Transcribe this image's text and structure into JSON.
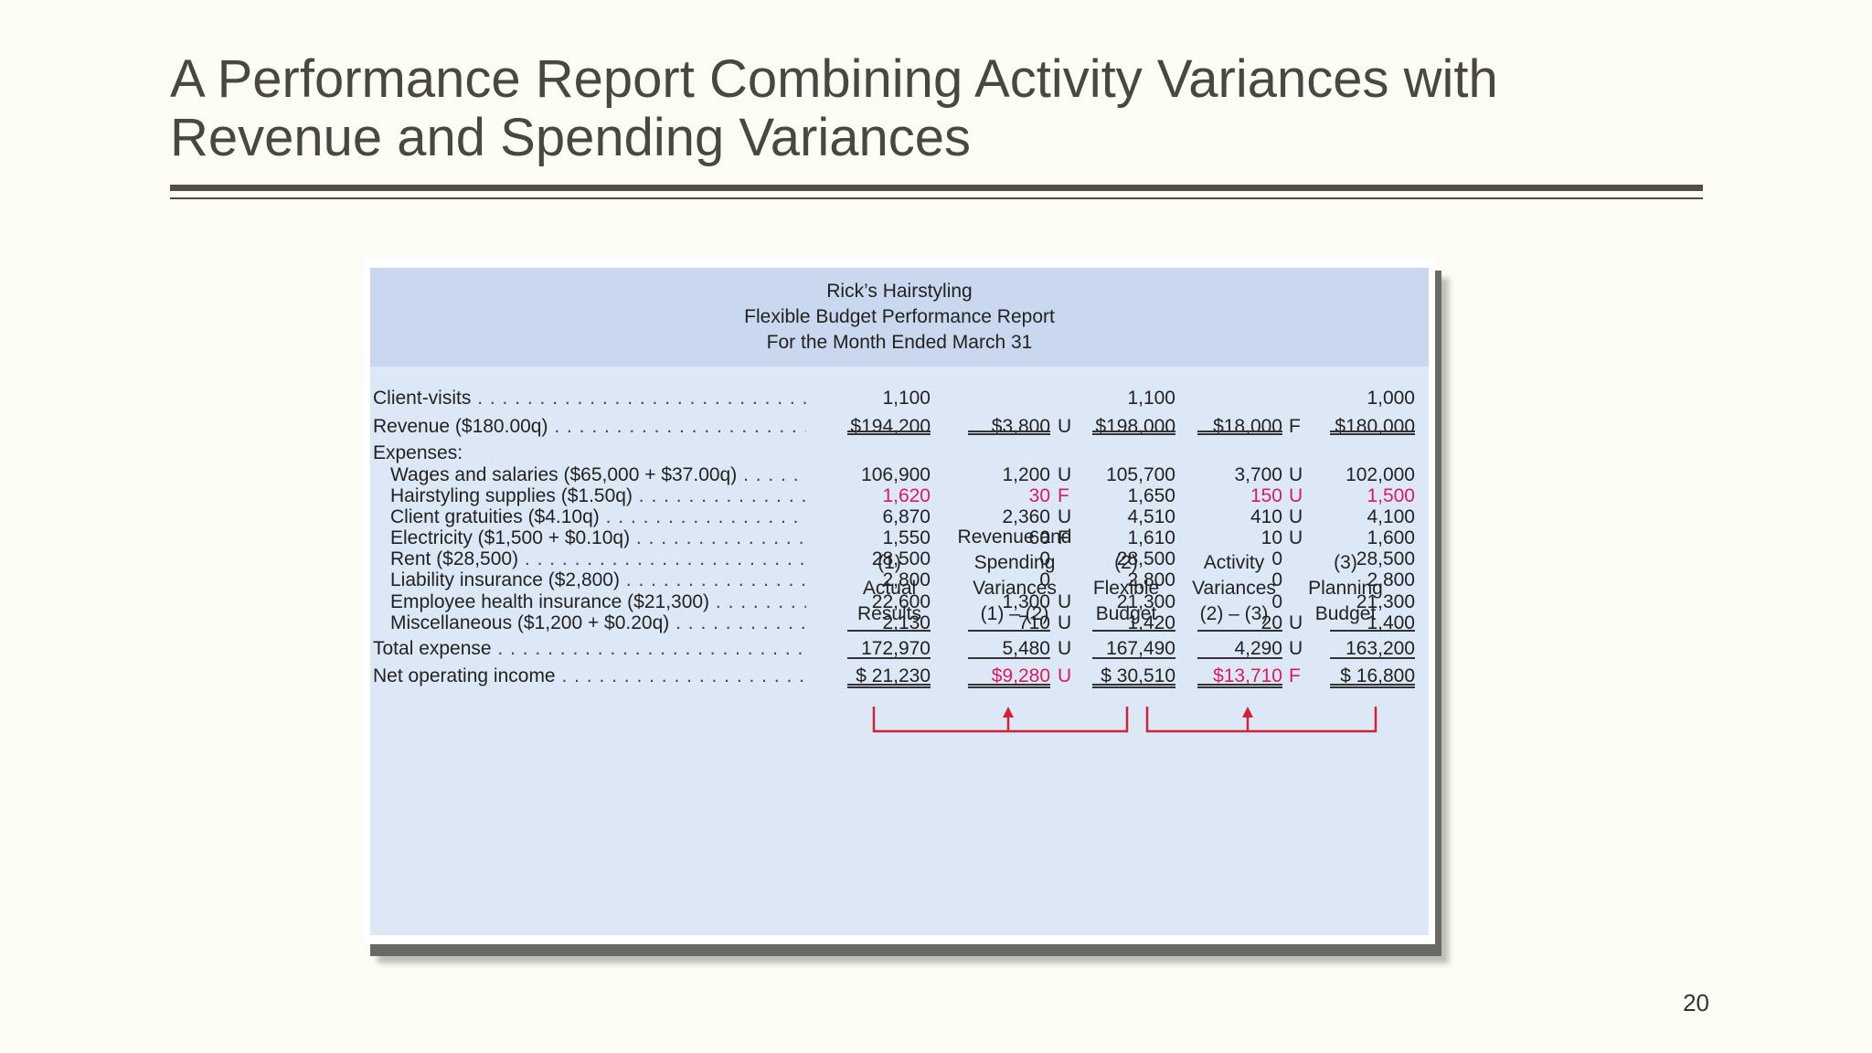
{
  "slide": {
    "title_line1": "A Performance Report Combining Activity Variances with",
    "title_line2": "Revenue and Spending Variances",
    "page_number": "20"
  },
  "report": {
    "company": "Rick’s Hairstyling",
    "report_name": "Flexible Budget Performance Report",
    "period": "For the Month Ended March 31",
    "columns": [
      {
        "lines": [
          "(1)",
          "Actual",
          "Results"
        ]
      },
      {
        "lines": [
          "Revenue and",
          "Spending",
          "Variances",
          "(1) – (2)"
        ]
      },
      {
        "lines": [
          "(2)",
          "Flexible",
          "Budget"
        ]
      },
      {
        "lines": [
          "Activity",
          "Variances",
          "(2) – (3)"
        ]
      },
      {
        "lines": [
          "(3)",
          "Planning",
          "Budget"
        ]
      }
    ],
    "rows": [
      {
        "label": "Client-visits",
        "dots": " . . . . . . . . . . . . . . . . . . . . . . . . . . . . . . . .",
        "indent": false,
        "actual": "1,100",
        "rs_var": "",
        "rs_flag": "",
        "flexible": "1,100",
        "act_var": "",
        "act_flag": "",
        "planning": "1,000"
      },
      {
        "label": "Revenue ($180.00q)",
        "dots": " . . . . . . . . . . . . . . . . . . . . . . . .",
        "indent": false,
        "actual": "$194,200",
        "rs_var": "$3,800",
        "rs_flag": "U",
        "flexible": "$198,000",
        "act_var": "$18,000",
        "act_flag": "F",
        "planning": "$180,000"
      },
      {
        "label": "Expenses:",
        "dots": "",
        "indent": false,
        "actual": "",
        "rs_var": "",
        "rs_flag": "",
        "flexible": "",
        "act_var": "",
        "act_flag": "",
        "planning": ""
      },
      {
        "label": "Wages and salaries ($65,000 + $37.00q)",
        "dots": " . . . . .",
        "indent": true,
        "actual": "106,900",
        "rs_var": "1,200",
        "rs_flag": "U",
        "flexible": "105,700",
        "act_var": "3,700",
        "act_flag": "U",
        "planning": "102,000"
      },
      {
        "label": "Hairstyling supplies ($1.50q)",
        "dots": " . . . . . . . . . . . . . . . .",
        "indent": true,
        "actual": "1,620",
        "rs_var": "30",
        "rs_flag": "F",
        "flexible": "1,650",
        "act_var": "150",
        "act_flag": "U",
        "planning": "1,500"
      },
      {
        "label": "Client gratuities ($4.10q)",
        "dots": " . . . . . . . . . . . . . . . . . . .",
        "indent": true,
        "actual": "6,870",
        "rs_var": "2,360",
        "rs_flag": "U",
        "flexible": "4,510",
        "act_var": "410",
        "act_flag": "U",
        "planning": "4,100"
      },
      {
        "label": "Electricity ($1,500 + $0.10q)",
        "dots": " . . . . . . . . . . . . . . . .",
        "indent": true,
        "actual": "1,550",
        "rs_var": "60",
        "rs_flag": "F",
        "flexible": "1,610",
        "act_var": "10",
        "act_flag": "U",
        "planning": "1,600"
      },
      {
        "label": "Rent ($28,500)",
        "dots": " . . . . . . . . . . . . . . . . . . . . . . . . . . .",
        "indent": true,
        "actual": "28,500",
        "rs_var": "0",
        "rs_flag": "",
        "flexible": "28,500",
        "act_var": "0",
        "act_flag": "",
        "planning": "28,500"
      },
      {
        "label": "Liability insurance ($2,800)",
        "dots": " . . . . . . . . . . . . . . . . .",
        "indent": true,
        "actual": "2,800",
        "rs_var": "0",
        "rs_flag": "",
        "flexible": "2,800",
        "act_var": "0",
        "act_flag": "",
        "planning": "2,800"
      },
      {
        "label": "Employee health insurance ($21,300)",
        "dots": " . . . . . . . .",
        "indent": true,
        "actual": "22,600",
        "rs_var": "1,300",
        "rs_flag": "U",
        "flexible": "21,300",
        "act_var": "0",
        "act_flag": "",
        "planning": "21,300"
      },
      {
        "label": "Miscellaneous ($1,200 + $0.20q)",
        "dots": " . . . . . . . . . . .",
        "indent": true,
        "actual": "2,130",
        "rs_var": "710",
        "rs_flag": "U",
        "flexible": "1,420",
        "act_var": "20",
        "act_flag": "U",
        "planning": "1,400"
      },
      {
        "label": "Total expense",
        "dots": " . . . . . . . . . . . . . . . . . . . . . . . . . . . . . .",
        "indent": false,
        "actual": "172,970",
        "rs_var": "5,480",
        "rs_flag": "U",
        "flexible": "167,490",
        "act_var": "4,290",
        "act_flag": "U",
        "planning": "163,200"
      },
      {
        "label": "Net operating income",
        "dots": " . . . . . . . . . . . . . . . . . . . . . . . .",
        "indent": false,
        "actual": "$ 21,230",
        "rs_var": "$9,280",
        "rs_flag": "U",
        "flexible": "$ 30,510",
        "act_var": "$13,710",
        "act_flag": "F",
        "planning": "$ 16,800"
      }
    ]
  },
  "colors": {
    "highlight": "#d81b60",
    "bracket": "#d0203a"
  }
}
